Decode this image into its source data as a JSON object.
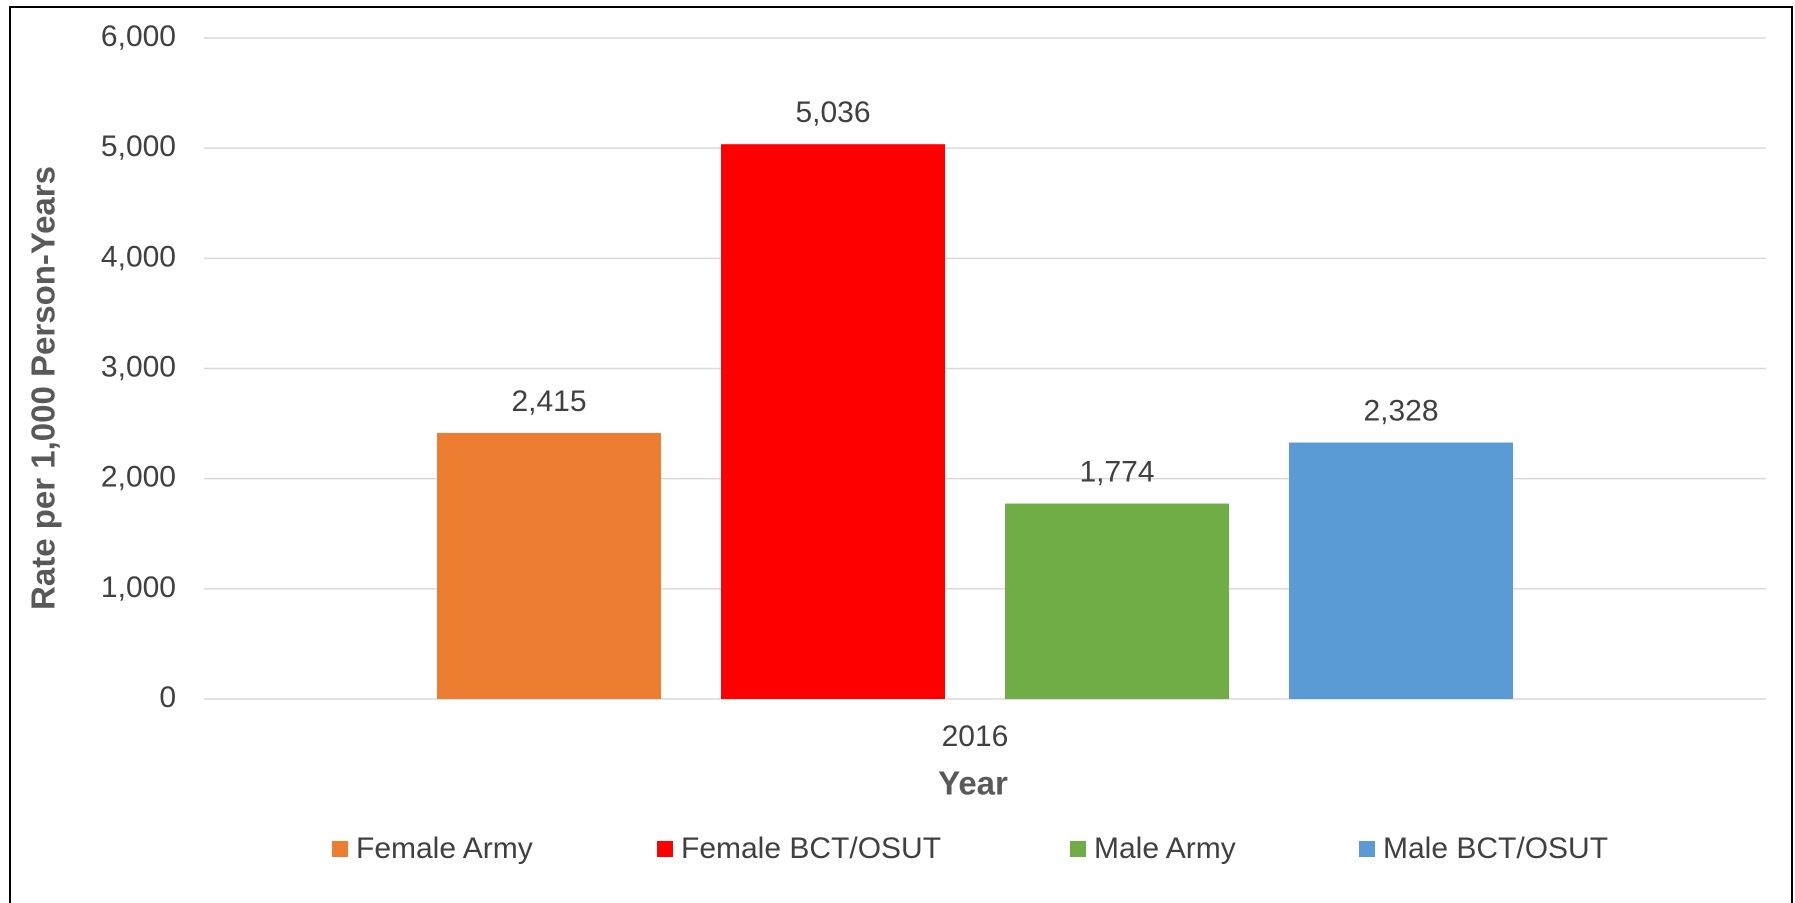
{
  "chart_data": {
    "type": "bar",
    "categories": [
      "2016"
    ],
    "series": [
      {
        "name": "Female Army",
        "color": "#ed7d31",
        "values": [
          2415
        ],
        "value_labels": [
          "2,415"
        ]
      },
      {
        "name": "Female BCT/OSUT",
        "color": "#ff0000",
        "values": [
          5036
        ],
        "value_labels": [
          "5,036"
        ]
      },
      {
        "name": "Male Army",
        "color": "#70ad47",
        "values": [
          1774
        ],
        "value_labels": [
          "1,774"
        ]
      },
      {
        "name": "Male BCT/OSUT",
        "color": "#5b9bd5",
        "values": [
          2328
        ],
        "value_labels": [
          "2,328"
        ]
      }
    ],
    "ylabel": "Rate per 1,000 Person-Years",
    "xlabel": "Year",
    "ylim": [
      0,
      6000
    ],
    "yticks": [
      0,
      {
        "value": 1000,
        "label": "1,000"
      },
      {
        "value": 2000,
        "label": "2,000"
      },
      {
        "value": 3000,
        "label": "3,000"
      },
      {
        "value": 4000,
        "label": "4,000"
      },
      {
        "value": 5000,
        "label": "5,000"
      },
      {
        "value": 6000,
        "label": "6,000"
      }
    ],
    "grid": true,
    "legend": "bottom"
  }
}
